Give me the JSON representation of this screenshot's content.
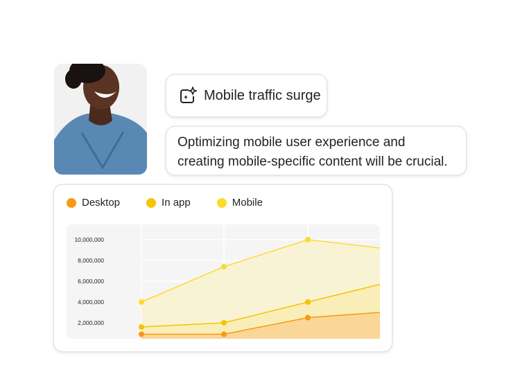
{
  "insight": {
    "icon": "sparkle-frame-icon",
    "title": "Mobile traffic surge",
    "description": "Optimizing mobile user experience and creating mobile-specific content will be crucial."
  },
  "chart_data": {
    "type": "area",
    "legend_placement": "top-left",
    "grid": true,
    "yticks": [
      "2,000,000",
      "4,000,000",
      "6,000,000",
      "8,000,000",
      "10,000,000"
    ],
    "ytick_values": [
      2000000,
      4000000,
      6000000,
      8000000,
      10000000
    ],
    "ylim": [
      0,
      11000000
    ],
    "x": [
      1,
      2,
      3,
      4
    ],
    "series": [
      {
        "name": "Desktop",
        "color": "#F79A12",
        "fill": "#F9D494",
        "values": [
          900000,
          900000,
          2500000,
          3000000
        ]
      },
      {
        "name": "In app",
        "color": "#F5C400",
        "fill": "#F8EDB5",
        "values": [
          1600000,
          2000000,
          4000000,
          5700000
        ]
      },
      {
        "name": "Mobile",
        "color": "#FDDB2E",
        "fill": "#F9F3D2",
        "values": [
          4000000,
          7400000,
          10000000,
          9200000
        ]
      }
    ]
  }
}
